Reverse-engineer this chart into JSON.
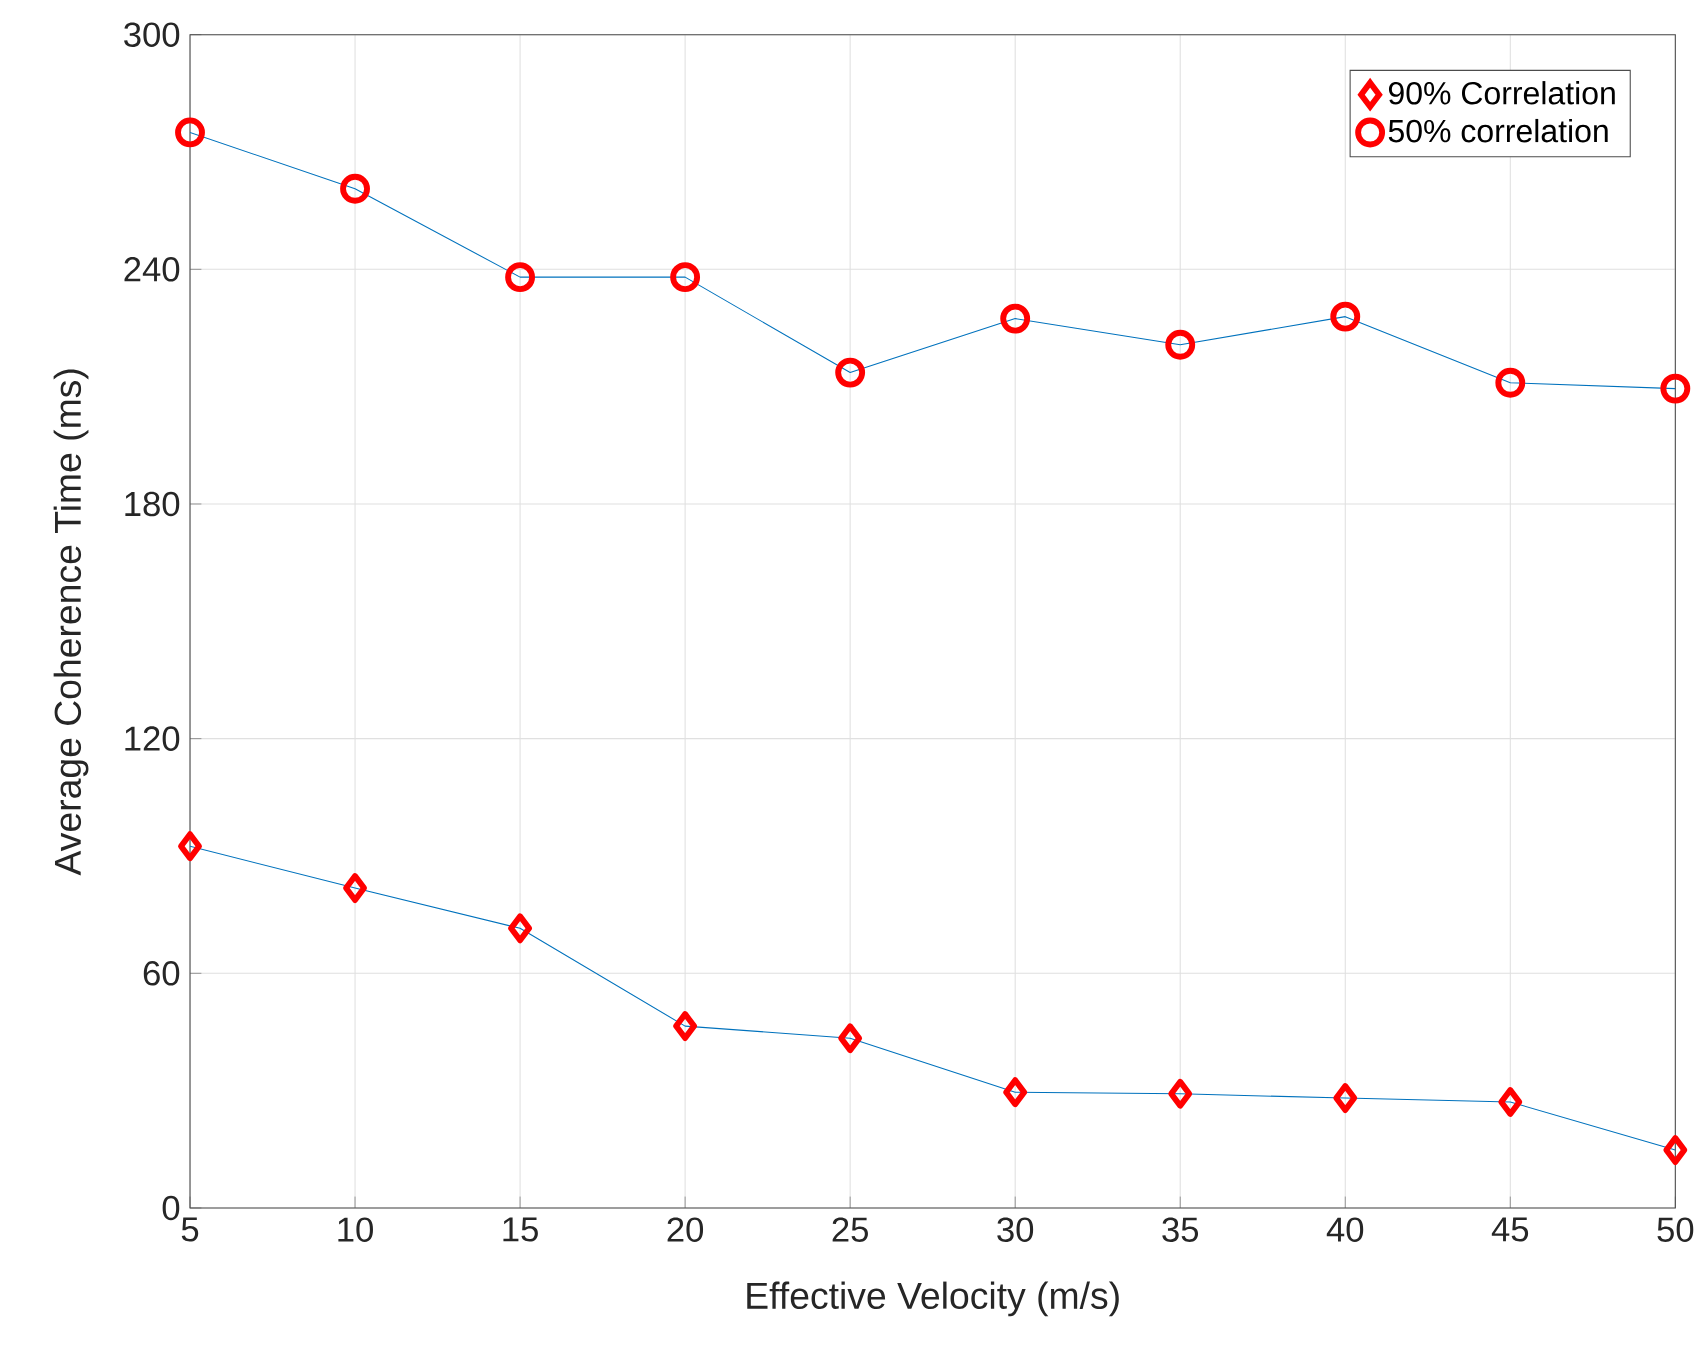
{
  "chart_data": {
    "type": "line",
    "xlabel": "Effective Velocity (m/s)",
    "ylabel": "Average Coherence Time (ms)",
    "x": [
      5,
      10,
      15,
      20,
      25,
      30,
      35,
      40,
      45,
      50
    ],
    "series": [
      {
        "name": "90% Correlation",
        "color": "#ff0000",
        "marker": "diamond",
        "values": [
          92.5,
          81.8,
          71.5,
          46.5,
          43.4,
          29.6,
          29.2,
          28.1,
          27.1,
          14.8
        ]
      },
      {
        "name": "50% correlation",
        "color": "#ff0000",
        "marker": "circle",
        "values": [
          275,
          260.6,
          238,
          238,
          213.6,
          227.4,
          220.7,
          227.9,
          211,
          209.5
        ]
      }
    ],
    "xlim": [
      5,
      50
    ],
    "ylim": [
      0,
      300
    ],
    "xticks": [
      5,
      10,
      15,
      20,
      25,
      30,
      35,
      40,
      45,
      50
    ],
    "yticks": [
      0,
      60,
      120,
      180,
      240,
      300
    ],
    "grid": true,
    "legend": "top right"
  }
}
